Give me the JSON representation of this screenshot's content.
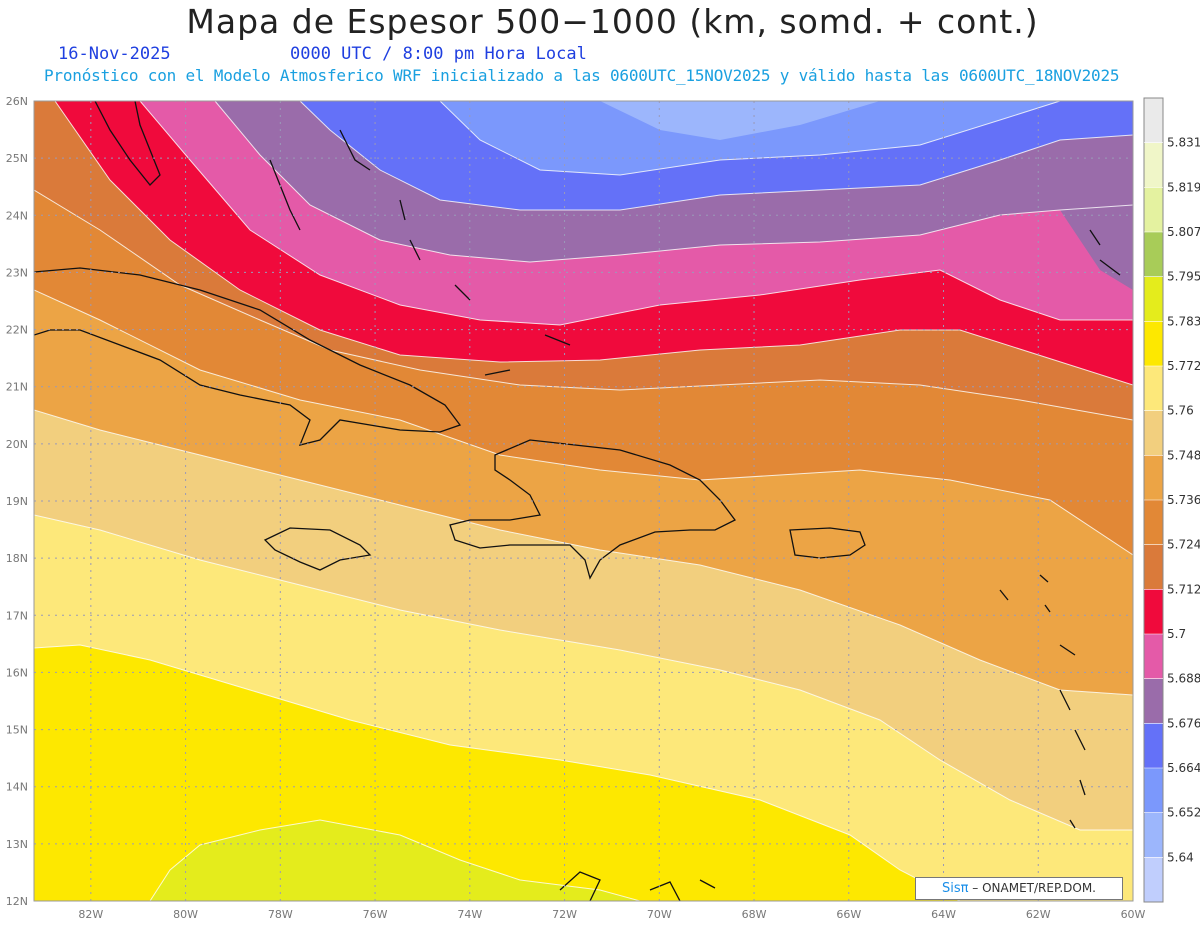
{
  "title": "Mapa de Espesor 500−1000 (km, somd. + cont.)",
  "date": "16-Nov-2025",
  "time": "0000 UTC / 8:00 pm Hora Local",
  "subtitle": "Pronóstico con el Modelo Atmosferico WRF inicializado a las 0600UTC_15NOV2025 y válido hasta las  0600UTC_18NOV2025",
  "credit": {
    "brand": "Sisπ",
    "text": "– ONAMET/REP.DOM."
  },
  "map": {
    "lon_range": [
      -83.2,
      -60
    ],
    "lat_range": [
      12,
      26
    ],
    "lon_ticks": [
      {
        "lon": -82,
        "label": "82W"
      },
      {
        "lon": -80,
        "label": "80W"
      },
      {
        "lon": -78,
        "label": "78W"
      },
      {
        "lon": -76,
        "label": "76W"
      },
      {
        "lon": -74,
        "label": "74W"
      },
      {
        "lon": -72,
        "label": "72W"
      },
      {
        "lon": -70,
        "label": "70W"
      },
      {
        "lon": -68,
        "label": "68W"
      },
      {
        "lon": -66,
        "label": "66W"
      },
      {
        "lon": -64,
        "label": "64W"
      },
      {
        "lon": -62,
        "label": "62W"
      },
      {
        "lon": -60,
        "label": "60W"
      }
    ],
    "lat_ticks": [
      {
        "lat": 12,
        "label": "12N"
      },
      {
        "lat": 13,
        "label": "13N"
      },
      {
        "lat": 14,
        "label": "14N"
      },
      {
        "lat": 15,
        "label": "15N"
      },
      {
        "lat": 16,
        "label": "16N"
      },
      {
        "lat": 17,
        "label": "17N"
      },
      {
        "lat": 18,
        "label": "18N"
      },
      {
        "lat": 19,
        "label": "19N"
      },
      {
        "lat": 20,
        "label": "20N"
      },
      {
        "lat": 21,
        "label": "21N"
      },
      {
        "lat": 22,
        "label": "22N"
      },
      {
        "lat": 23,
        "label": "23N"
      },
      {
        "lat": 24,
        "label": "24N"
      },
      {
        "lat": 25,
        "label": "25N"
      },
      {
        "lat": 26,
        "label": "26N"
      }
    ]
  },
  "colorbar": {
    "labels": [
      "5.831",
      "5.819",
      "5.807",
      "5.795",
      "5.783",
      "5.772",
      "5.76",
      "5.748",
      "5.736",
      "5.724",
      "5.712",
      "5.7",
      "5.688",
      "5.676",
      "5.664",
      "5.652",
      "5.64"
    ],
    "colors": [
      "#eaeaea",
      "#f0f6c8",
      "#e4f2a0",
      "#a8cc58",
      "#e4ec1c",
      "#fde800",
      "#fde87a",
      "#f2cf7e",
      "#eca445",
      "#e28836",
      "#da7a3a",
      "#f00a3c",
      "#e45aa8",
      "#9a6caa",
      "#6471f8",
      "#7b98fc",
      "#9cb6fc",
      "#c0cefd"
    ]
  }
}
